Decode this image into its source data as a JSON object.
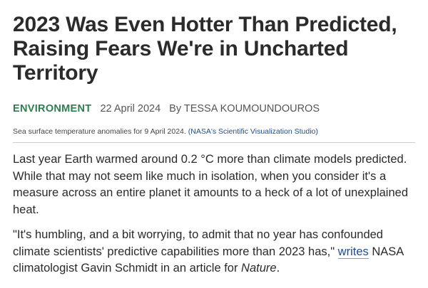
{
  "article": {
    "title": "2023 Was Even Hotter Than Predicted, Raising Fears We're in Uncharted Territory",
    "category": "ENVIRONMENT",
    "date": "22 April 2024",
    "byline": "By TESSA KOUMOUNDOUROS",
    "caption": {
      "text": "Sea surface temperature anomalies for 9 April 2024.",
      "credit": "(NASA's Scientific Visualization Studio)"
    },
    "paragraphs": [
      "Last year Earth warmed around 0.2 °C more than climate models predicted. While that may not seem like much in isolation, when you consider it's a measure across an entire planet it amounts to a heck of a lot of unexplained heat."
    ],
    "quote_paragraph": [
      "\"It's humbling, and a bit worrying, to admit that no year has confounded climate scientists' predictive capabilities more than 2023 has,\" ",
      "writes",
      " NASA climatologist Gavin Schmidt in an article for ",
      "Nature",
      "."
    ]
  }
}
